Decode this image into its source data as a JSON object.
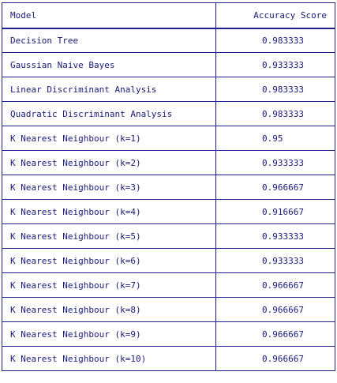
{
  "table": {
    "headers": [
      "Model",
      "Accuracy Score"
    ],
    "rows": [
      {
        "model": "Decision Tree",
        "score": "0.983333"
      },
      {
        "model": "Gaussian Naive Bayes",
        "score": "0.933333"
      },
      {
        "model": "Linear Discriminant Analysis",
        "score": "0.983333"
      },
      {
        "model": "Quadratic Discriminant Analysis",
        "score": "0.983333"
      },
      {
        "model": "K Nearest Neighbour (k=1)",
        "score": "0.95"
      },
      {
        "model": "K Nearest Neighbour (k=2)",
        "score": "0.933333"
      },
      {
        "model": "K Nearest Neighbour (k=3)",
        "score": "0.966667"
      },
      {
        "model": "K Nearest Neighbour (k=4)",
        "score": "0.916667"
      },
      {
        "model": "K Nearest Neighbour (k=5)",
        "score": "0.933333"
      },
      {
        "model": "K Nearest Neighbour (k=6)",
        "score": "0.933333"
      },
      {
        "model": "K Nearest Neighbour (k=7)",
        "score": "0.966667"
      },
      {
        "model": "K Nearest Neighbour (k=8)",
        "score": "0.966667"
      },
      {
        "model": "K Nearest Neighbour (k=9)",
        "score": "0.966667"
      },
      {
        "model": "K Nearest Neighbour (k=10)",
        "score": "0.966667"
      }
    ]
  },
  "colors": {
    "border": "#1f1f8f",
    "text": "#1a1a7a",
    "background": "#ffffff"
  }
}
